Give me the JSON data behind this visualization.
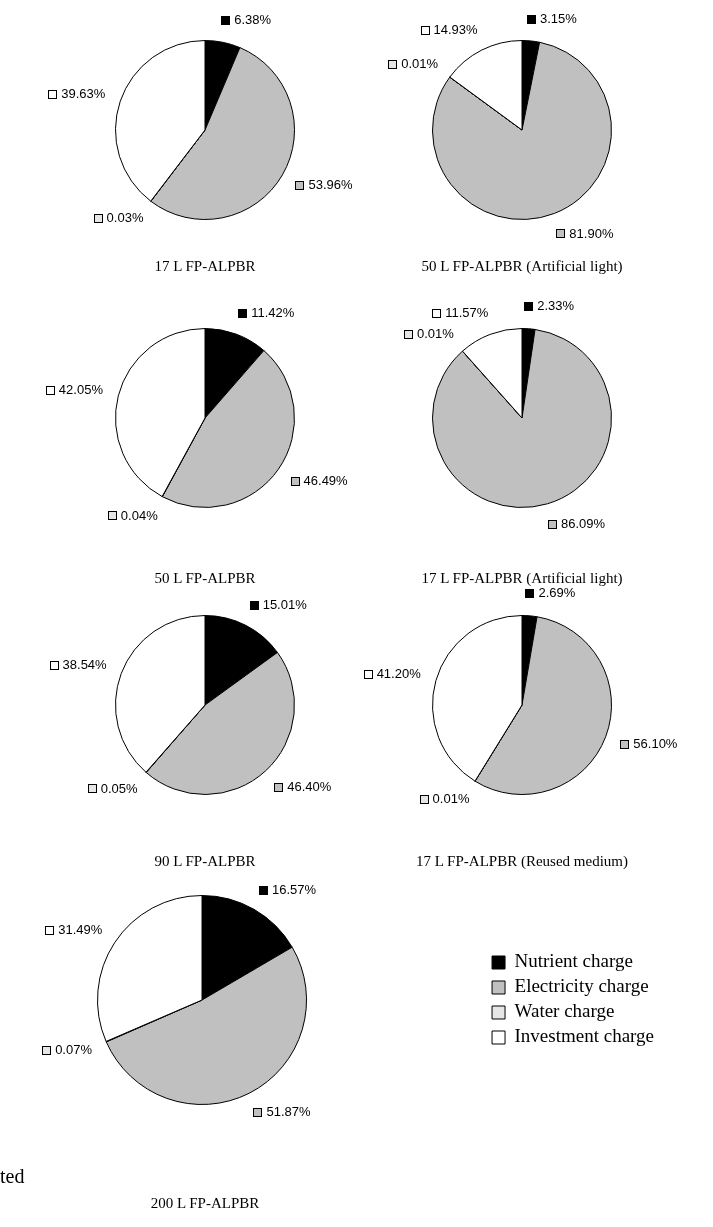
{
  "chart_data": [
    {
      "type": "pie",
      "title": "17 L FP-ALPBR",
      "categories": [
        null,
        null,
        null,
        null
      ],
      "values": [
        6.38,
        53.96,
        0.03,
        39.63
      ],
      "value_labels": [
        "6.38%",
        "53.96%",
        "0.03%",
        "39.63%"
      ],
      "colors": [
        "#000000",
        "#c0c0c0",
        "#e6e6e6",
        "#ffffff"
      ],
      "legend": false
    },
    {
      "type": "pie",
      "title": "50 L FP-ALPBR (Artificial light)",
      "categories": [
        null,
        null,
        null,
        null
      ],
      "values": [
        3.15,
        81.9,
        0.01,
        14.93
      ],
      "value_labels": [
        "3.15%",
        "81.90%",
        "0.01%",
        "14.93%"
      ],
      "colors": [
        "#000000",
        "#c0c0c0",
        "#e6e6e6",
        "#ffffff"
      ],
      "legend": false
    },
    {
      "type": "pie",
      "title": "50 L FP-ALPBR",
      "categories": [
        null,
        null,
        null,
        null
      ],
      "values": [
        11.42,
        46.49,
        0.04,
        42.05
      ],
      "value_labels": [
        "11.42%",
        "46.49%",
        "0.04%",
        "42.05%"
      ],
      "colors": [
        "#000000",
        "#c0c0c0",
        "#e6e6e6",
        "#ffffff"
      ],
      "legend": false
    },
    {
      "type": "pie",
      "title": "17 L FP-ALPBR (Artificial light)",
      "categories": [
        null,
        null,
        null,
        null
      ],
      "values": [
        2.33,
        86.09,
        0.01,
        11.57
      ],
      "value_labels": [
        "2.33%",
        "86.09%",
        "0.01%",
        "11.57%"
      ],
      "colors": [
        "#000000",
        "#c0c0c0",
        "#e6e6e6",
        "#ffffff"
      ],
      "legend": false
    },
    {
      "type": "pie",
      "title": "90 L FP-ALPBR",
      "categories": [
        null,
        null,
        null,
        null
      ],
      "values": [
        15.01,
        46.4,
        0.05,
        38.54
      ],
      "value_labels": [
        "15.01%",
        "46.40%",
        "0.05%",
        "38.54%"
      ],
      "colors": [
        "#000000",
        "#c0c0c0",
        "#e6e6e6",
        "#ffffff"
      ],
      "legend": false
    },
    {
      "type": "pie",
      "title": "17 L FP-ALPBR (Reused medium)",
      "categories": [
        null,
        null,
        null,
        null
      ],
      "values": [
        2.69,
        56.1,
        0.01,
        41.2
      ],
      "value_labels": [
        "2.69%",
        "56.10%",
        "0.01%",
        "41.20%"
      ],
      "colors": [
        "#000000",
        "#c0c0c0",
        "#e6e6e6",
        "#ffffff"
      ],
      "legend": false
    },
    {
      "type": "pie",
      "title": "200 L FP-ALPBR",
      "categories": [
        "Nutrient charge",
        "Electricity charge",
        "Water charge",
        "Investment charge"
      ],
      "values": [
        16.57,
        51.87,
        0.07,
        31.49
      ],
      "value_labels": [
        "16.57%",
        "51.87%",
        "0.07%",
        "31.49%"
      ],
      "colors": [
        "#000000",
        "#c0c0c0",
        "#e6e6e6",
        "#ffffff"
      ],
      "legend": "right",
      "annotations": [
        "ted"
      ]
    }
  ]
}
